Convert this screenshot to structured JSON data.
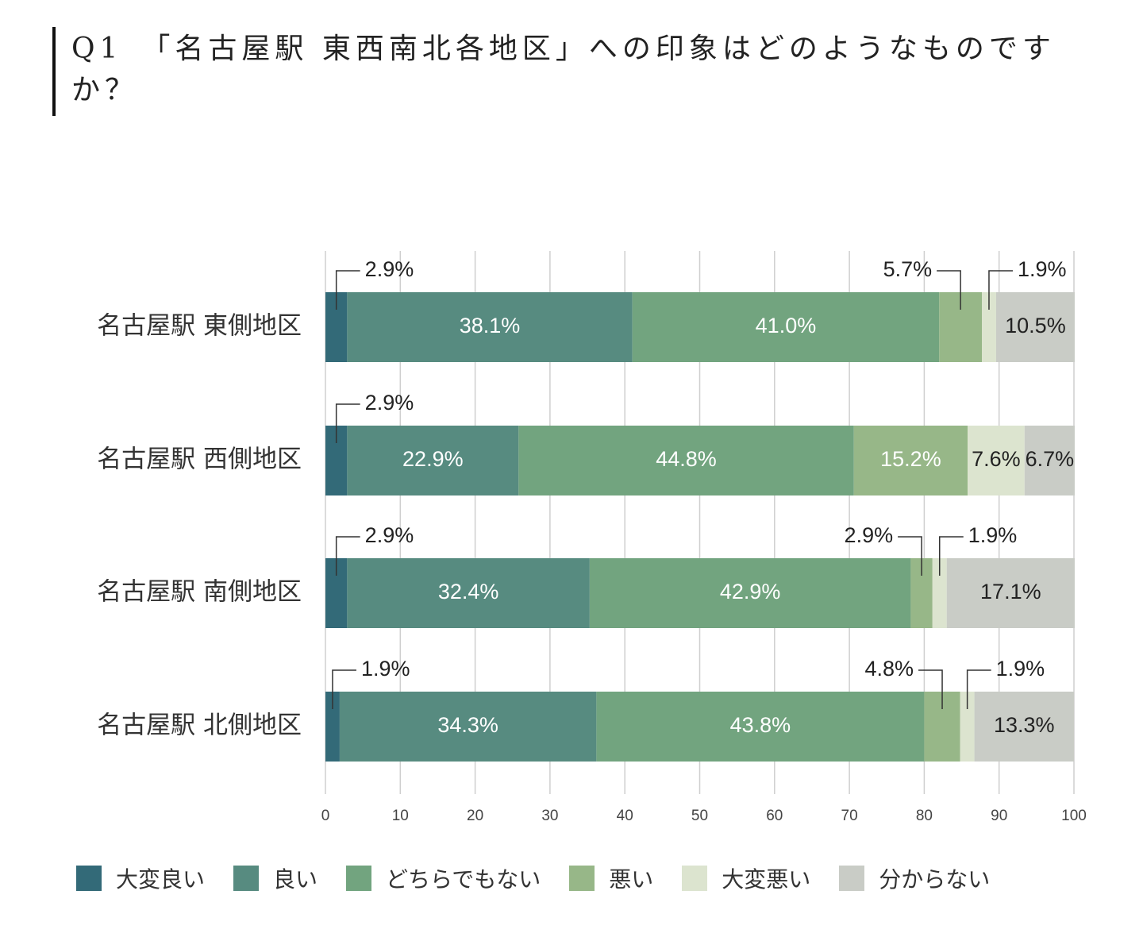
{
  "question": "Q1　「名古屋駅 東西南北各地区」への印象はどのようなものですか？",
  "chart_data": {
    "type": "bar",
    "orientation": "horizontal",
    "stacked": true,
    "title": "",
    "xlabel": "",
    "ylabel": "",
    "xlim": [
      0,
      100
    ],
    "xticks": [
      0,
      10,
      20,
      30,
      40,
      50,
      60,
      70,
      80,
      90,
      100
    ],
    "grid": true,
    "legend_position": "bottom",
    "categories": [
      "名古屋駅 東側地区",
      "名古屋駅 西側地区",
      "名古屋駅 南側地区",
      "名古屋駅 北側地区"
    ],
    "series": [
      {
        "name": "大変良い",
        "color": "#336a78",
        "values": [
          2.9,
          2.9,
          2.9,
          1.9
        ],
        "labels": [
          "2.9%",
          "2.9%",
          "2.9%",
          "1.9%"
        ]
      },
      {
        "name": "良い",
        "color": "#578b80",
        "values": [
          38.1,
          22.9,
          32.4,
          34.3
        ],
        "labels": [
          "38.1%",
          "22.9%",
          "32.4%",
          "34.3%"
        ]
      },
      {
        "name": "どちらでもない",
        "color": "#72a47f",
        "values": [
          41.0,
          44.8,
          42.9,
          43.8
        ],
        "labels": [
          "41.0%",
          "44.8%",
          "42.9%",
          "43.8%"
        ]
      },
      {
        "name": "悪い",
        "color": "#97b788",
        "values": [
          5.7,
          15.2,
          2.9,
          4.8
        ],
        "labels": [
          "5.7%",
          "15.2%",
          "2.9%",
          "4.8%"
        ]
      },
      {
        "name": "大変悪い",
        "color": "#dce4cf",
        "values": [
          1.9,
          7.6,
          1.9,
          1.9
        ],
        "labels": [
          "1.9%",
          "7.6%",
          "1.9%",
          "1.9%"
        ]
      },
      {
        "name": "分からない",
        "color": "#c9ccc6",
        "values": [
          10.5,
          6.7,
          17.1,
          13.3
        ],
        "labels": [
          "10.5%",
          "6.7%",
          "17.1%",
          "13.3%"
        ]
      }
    ]
  }
}
